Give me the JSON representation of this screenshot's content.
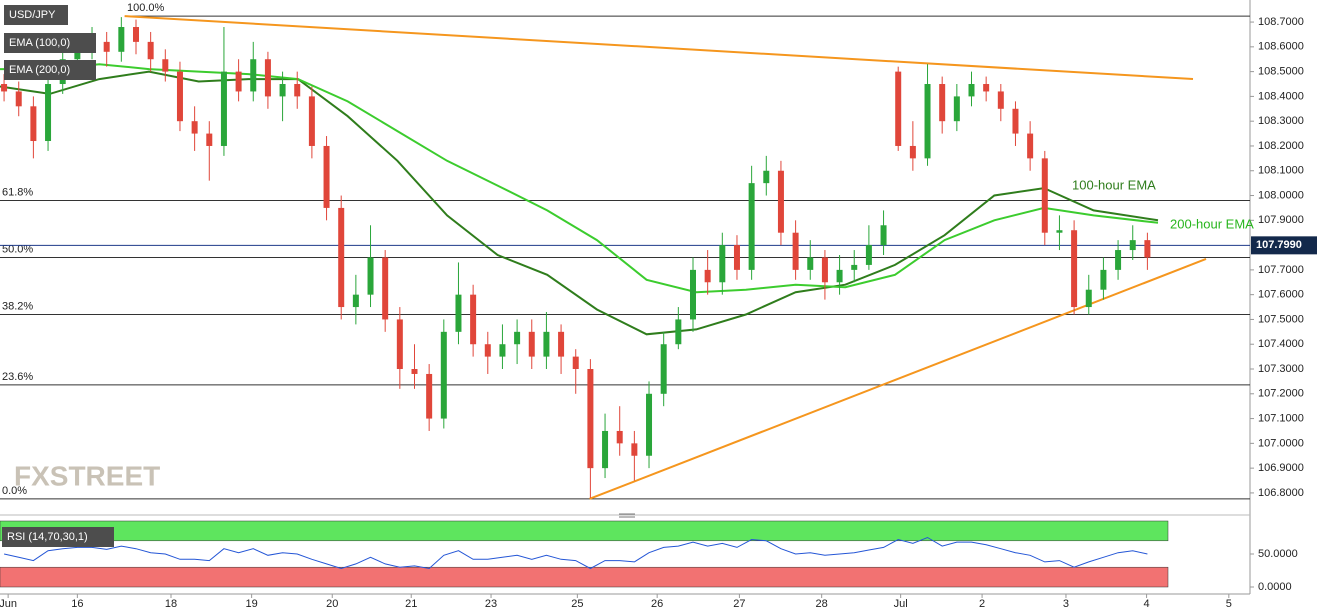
{
  "chart_data": {
    "type": "candlestick",
    "title": "USD/JPY",
    "watermark": "FXSTREET",
    "up_color": "#2aa63a",
    "down_color": "#e0463a",
    "xlim": [
      0,
      15.35
    ],
    "xticks": [
      {
        "value": 0.1,
        "label": "Jun"
      },
      {
        "value": 0.95,
        "label": "16"
      },
      {
        "value": 2.1,
        "label": "18"
      },
      {
        "value": 3.09,
        "label": "19"
      },
      {
        "value": 4.08,
        "label": "20"
      },
      {
        "value": 5.05,
        "label": "21"
      },
      {
        "value": 6.03,
        "label": "23"
      },
      {
        "value": 7.09,
        "label": "25"
      },
      {
        "value": 8.07,
        "label": "26"
      },
      {
        "value": 9.08,
        "label": "27"
      },
      {
        "value": 10.09,
        "label": "28"
      },
      {
        "value": 11.06,
        "label": "Jul"
      },
      {
        "value": 12.06,
        "label": "2"
      },
      {
        "value": 13.09,
        "label": "3"
      },
      {
        "value": 14.08,
        "label": "4"
      },
      {
        "value": 15.09,
        "label": "5"
      }
    ],
    "ylim": [
      106.723,
      108.789
    ],
    "yticks": [
      {
        "value": 108.7,
        "label": "108.7000"
      },
      {
        "value": 108.6,
        "label": "108.6000"
      },
      {
        "value": 108.5,
        "label": "108.5000"
      },
      {
        "value": 108.4,
        "label": "108.4000"
      },
      {
        "value": 108.3,
        "label": "108.3000"
      },
      {
        "value": 108.2,
        "label": "108.2000"
      },
      {
        "value": 108.1,
        "label": "108.1000"
      },
      {
        "value": 108.0,
        "label": "108.0000"
      },
      {
        "value": 107.9,
        "label": "107.9000"
      },
      {
        "value": 107.7,
        "label": "107.7000"
      },
      {
        "value": 107.6,
        "label": "107.6000"
      },
      {
        "value": 107.5,
        "label": "107.5000"
      },
      {
        "value": 107.4,
        "label": "107.4000"
      },
      {
        "value": 107.3,
        "label": "107.3000"
      },
      {
        "value": 107.2,
        "label": "107.2000"
      },
      {
        "value": 107.1,
        "label": "107.1000"
      },
      {
        "value": 107.0,
        "label": "107.0000"
      },
      {
        "value": 106.9,
        "label": "106.9000"
      },
      {
        "value": 106.8,
        "label": "106.8000"
      }
    ],
    "x": [
      0.05,
      0.23,
      0.41,
      0.59,
      0.77,
      0.95,
      1.13,
      1.31,
      1.49,
      1.67,
      1.85,
      2.03,
      2.21,
      2.39,
      2.57,
      2.75,
      2.93,
      3.11,
      3.29,
      3.47,
      3.65,
      3.83,
      4.01,
      4.19,
      4.37,
      4.55,
      4.73,
      4.91,
      5.09,
      5.27,
      5.45,
      5.63,
      5.81,
      5.99,
      6.17,
      6.35,
      6.53,
      6.71,
      6.89,
      7.07,
      7.25,
      7.43,
      7.61,
      7.79,
      7.97,
      8.15,
      8.33,
      8.51,
      8.69,
      8.87,
      9.05,
      9.23,
      9.41,
      9.59,
      9.77,
      9.95,
      10.13,
      10.31,
      10.49,
      10.67,
      10.85,
      11.03,
      11.21,
      11.39,
      11.57,
      11.75,
      11.93,
      12.11,
      12.29,
      12.47,
      12.65,
      12.83,
      13.01,
      13.19,
      13.37,
      13.55,
      13.73,
      13.91,
      14.09
    ],
    "ohlc": [
      [
        108.45,
        108.49,
        108.38,
        108.42
      ],
      [
        108.42,
        108.46,
        108.32,
        108.36
      ],
      [
        108.36,
        108.4,
        108.15,
        108.22
      ],
      [
        108.22,
        108.49,
        108.18,
        108.45
      ],
      [
        108.45,
        108.6,
        108.41,
        108.55
      ],
      [
        108.55,
        108.65,
        108.51,
        108.6
      ],
      [
        108.6,
        108.68,
        108.55,
        108.62
      ],
      [
        108.62,
        108.66,
        108.52,
        108.58
      ],
      [
        108.58,
        108.72,
        108.54,
        108.68
      ],
      [
        108.68,
        108.71,
        108.57,
        108.62
      ],
      [
        108.62,
        108.66,
        108.5,
        108.55
      ],
      [
        108.55,
        108.59,
        108.46,
        108.5
      ],
      [
        108.5,
        108.54,
        108.26,
        108.3
      ],
      [
        108.3,
        108.36,
        108.18,
        108.25
      ],
      [
        108.25,
        108.3,
        108.06,
        108.2
      ],
      [
        108.2,
        108.68,
        108.16,
        108.5
      ],
      [
        108.5,
        108.55,
        108.38,
        108.42
      ],
      [
        108.42,
        108.62,
        108.38,
        108.55
      ],
      [
        108.55,
        108.58,
        108.35,
        108.4
      ],
      [
        108.4,
        108.5,
        108.3,
        108.45
      ],
      [
        108.45,
        108.5,
        108.35,
        108.4
      ],
      [
        108.4,
        108.44,
        108.15,
        108.2
      ],
      [
        108.2,
        108.24,
        107.9,
        107.95
      ],
      [
        107.95,
        108.0,
        107.5,
        107.55
      ],
      [
        107.55,
        107.68,
        107.48,
        107.6
      ],
      [
        107.6,
        107.88,
        107.55,
        107.75
      ],
      [
        107.75,
        107.78,
        107.45,
        107.5
      ],
      [
        107.5,
        107.55,
        107.22,
        107.3
      ],
      [
        107.3,
        107.4,
        107.22,
        107.28
      ],
      [
        107.28,
        107.32,
        107.05,
        107.1
      ],
      [
        107.1,
        107.5,
        107.06,
        107.45
      ],
      [
        107.45,
        107.73,
        107.4,
        107.6
      ],
      [
        107.6,
        107.64,
        107.35,
        107.4
      ],
      [
        107.4,
        107.45,
        107.28,
        107.35
      ],
      [
        107.35,
        107.48,
        107.3,
        107.4
      ],
      [
        107.4,
        107.5,
        107.32,
        107.45
      ],
      [
        107.45,
        107.5,
        107.3,
        107.35
      ],
      [
        107.35,
        107.53,
        107.3,
        107.45
      ],
      [
        107.45,
        107.48,
        107.28,
        107.35
      ],
      [
        107.35,
        107.38,
        107.2,
        107.3
      ],
      [
        107.3,
        107.34,
        106.78,
        106.9
      ],
      [
        106.9,
        107.12,
        106.86,
        107.05
      ],
      [
        107.05,
        107.15,
        106.95,
        107.0
      ],
      [
        107.0,
        107.05,
        106.85,
        106.95
      ],
      [
        106.95,
        107.25,
        106.9,
        107.2
      ],
      [
        107.2,
        107.45,
        107.15,
        107.4
      ],
      [
        107.4,
        107.55,
        107.38,
        107.5
      ],
      [
        107.5,
        107.75,
        107.45,
        107.7
      ],
      [
        107.7,
        107.78,
        107.6,
        107.65
      ],
      [
        107.65,
        107.85,
        107.6,
        107.8
      ],
      [
        107.8,
        107.84,
        107.66,
        107.7
      ],
      [
        107.7,
        108.12,
        107.66,
        108.05
      ],
      [
        108.05,
        108.16,
        108.0,
        108.1
      ],
      [
        108.1,
        108.14,
        107.8,
        107.85
      ],
      [
        107.85,
        107.9,
        107.66,
        107.7
      ],
      [
        107.7,
        107.82,
        107.66,
        107.75
      ],
      [
        107.75,
        107.78,
        107.58,
        107.65
      ],
      [
        107.65,
        107.76,
        107.6,
        107.7
      ],
      [
        107.7,
        107.78,
        107.65,
        107.72
      ],
      [
        107.72,
        107.88,
        107.7,
        107.8
      ],
      [
        107.8,
        107.94,
        107.76,
        107.88
      ],
      [
        108.5,
        108.52,
        108.18,
        108.2
      ],
      [
        108.2,
        108.3,
        108.1,
        108.15
      ],
      [
        108.15,
        108.53,
        108.12,
        108.45
      ],
      [
        108.45,
        108.48,
        108.25,
        108.3
      ],
      [
        108.3,
        108.45,
        108.26,
        108.4
      ],
      [
        108.4,
        108.5,
        108.36,
        108.45
      ],
      [
        108.45,
        108.48,
        108.38,
        108.42
      ],
      [
        108.42,
        108.45,
        108.3,
        108.35
      ],
      [
        108.35,
        108.38,
        108.2,
        108.25
      ],
      [
        108.25,
        108.3,
        108.1,
        108.15
      ],
      [
        108.15,
        108.18,
        107.8,
        107.85
      ],
      [
        107.85,
        107.92,
        107.78,
        107.86
      ],
      [
        107.86,
        107.9,
        107.52,
        107.55
      ],
      [
        107.55,
        107.68,
        107.52,
        107.62
      ],
      [
        107.62,
        107.75,
        107.58,
        107.7
      ],
      [
        107.7,
        107.82,
        107.66,
        107.78
      ],
      [
        107.78,
        107.88,
        107.74,
        107.82
      ],
      [
        107.82,
        107.85,
        107.7,
        107.75
      ]
    ],
    "series": [
      {
        "name": "EMA (100,0)",
        "color": "#2f7d1c",
        "x": [
          0,
          0.61,
          1.22,
          1.83,
          2.44,
          3.05,
          3.66,
          4.27,
          4.88,
          5.49,
          6.11,
          6.72,
          7.33,
          7.94,
          8.55,
          9.16,
          9.77,
          10.38,
          10.99,
          11.6,
          12.21,
          12.82,
          13.43,
          14.22
        ],
        "values": [
          108.44,
          108.41,
          108.47,
          108.5,
          108.46,
          108.47,
          108.47,
          108.32,
          108.14,
          107.92,
          107.76,
          107.68,
          107.54,
          107.44,
          107.46,
          107.52,
          107.61,
          107.64,
          107.72,
          107.84,
          108.0,
          108.03,
          107.94,
          107.9
        ]
      },
      {
        "name": "EMA (200,0)",
        "color": "#3ccc2e",
        "x": [
          0,
          0.61,
          1.22,
          1.83,
          2.44,
          3.05,
          3.66,
          4.27,
          4.88,
          5.49,
          6.11,
          6.72,
          7.33,
          7.94,
          8.55,
          9.16,
          9.77,
          10.38,
          10.99,
          11.6,
          12.21,
          12.82,
          13.43,
          14.22
        ],
        "values": [
          108.51,
          108.51,
          108.53,
          108.51,
          108.5,
          108.49,
          108.47,
          108.38,
          108.26,
          108.14,
          108.04,
          107.94,
          107.82,
          107.66,
          107.61,
          107.62,
          107.64,
          107.63,
          107.68,
          107.82,
          107.9,
          107.95,
          107.92,
          107.89
        ]
      }
    ],
    "annotations": [
      "100-hour EMA",
      "200-hour EMA"
    ],
    "fib": {
      "range": [
        106.776,
        108.724
      ],
      "levels": [
        {
          "value": 100,
          "label": "100.0%"
        },
        {
          "value": 61.8,
          "label": "61.8%"
        },
        {
          "value": 50,
          "label": "50.0%"
        },
        {
          "value": 38.2,
          "label": "38.2%"
        },
        {
          "value": 23.6,
          "label": "23.6%"
        },
        {
          "value": 0,
          "label": "0.0%"
        }
      ]
    },
    "trendlines": [
      {
        "color": "#f5961e",
        "x": [
          1.53,
          14.65
        ],
        "values": [
          108.724,
          108.47
        ]
      },
      {
        "color": "#f5961e",
        "x": [
          7.24,
          14.81
        ],
        "values": [
          106.776,
          107.744
        ]
      }
    ],
    "last_price": {
      "value": 107.799,
      "label": "107.7990"
    },
    "rsi": {
      "title": "RSI (14,70,30,1)",
      "color": "#2456d6",
      "upper": 70,
      "lower": 30,
      "upper_color": "#5ee55e",
      "lower_color": "#f27272",
      "ylim": [
        0,
        100
      ],
      "yticks": [
        {
          "value": 50,
          "label": "50.0000"
        },
        {
          "value": 0,
          "label": "0.0000"
        }
      ],
      "values": [
        50,
        45,
        40,
        55,
        58,
        60,
        60,
        57,
        62,
        58,
        52,
        50,
        42,
        42,
        40,
        58,
        52,
        58,
        48,
        52,
        50,
        42,
        35,
        28,
        35,
        45,
        35,
        30,
        32,
        28,
        48,
        55,
        42,
        42,
        45,
        48,
        42,
        48,
        42,
        40,
        28,
        40,
        40,
        38,
        52,
        60,
        62,
        68,
        62,
        66,
        60,
        72,
        70,
        58,
        50,
        52,
        48,
        50,
        52,
        56,
        60,
        72,
        66,
        75,
        62,
        68,
        68,
        64,
        58,
        52,
        48,
        38,
        40,
        30,
        38,
        45,
        52,
        55,
        50
      ]
    }
  }
}
